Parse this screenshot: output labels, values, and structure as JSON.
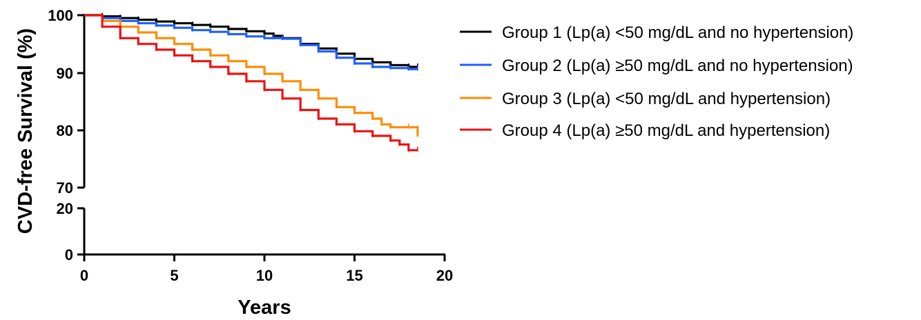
{
  "chart_data": {
    "type": "line",
    "title": "",
    "xlabel": "Years",
    "ylabel": "CVD-free Survival (%)",
    "xlim": [
      0,
      20
    ],
    "x_ticks": [
      0,
      5,
      10,
      15,
      20
    ],
    "y_broken_axis": true,
    "y_segments": [
      {
        "range": [
          0,
          20
        ],
        "ticks": [
          0,
          20
        ]
      },
      {
        "range": [
          70,
          100
        ],
        "ticks": [
          70,
          80,
          90,
          100
        ]
      }
    ],
    "y_tick_labels": [
      "0",
      "20",
      "70",
      "80",
      "90",
      "100"
    ],
    "x_tick_labels": [
      "0",
      "5",
      "10",
      "15",
      "20"
    ],
    "grid": false,
    "legend_position": "right",
    "series": [
      {
        "name": "Group 1 (Lp(a) <50 mg/dL and no hypertension)",
        "color": "#000000",
        "x": [
          0,
          1,
          2,
          3,
          4,
          5,
          6,
          7,
          8,
          9,
          10,
          10.5,
          11,
          12,
          13,
          14,
          15,
          16,
          17,
          18,
          18.5
        ],
        "y": [
          100,
          99.8,
          99.5,
          99.2,
          98.9,
          98.6,
          98.3,
          98.0,
          97.6,
          97.2,
          96.8,
          96.4,
          96.0,
          95.0,
          94.2,
          93.3,
          92.4,
          91.8,
          91.3,
          91.0,
          91.0
        ]
      },
      {
        "name": "Group 2 (Lp(a) ≥50 mg/dL and no hypertension)",
        "color": "#1f5fff",
        "x": [
          0,
          1,
          2,
          3,
          4,
          5,
          6,
          7,
          8,
          9,
          10,
          10.5,
          11,
          12,
          13,
          14,
          15,
          16,
          17,
          18,
          18.5
        ],
        "y": [
          100,
          99.5,
          99.0,
          98.6,
          98.2,
          97.8,
          97.4,
          97.1,
          96.7,
          96.3,
          96.0,
          96.0,
          95.9,
          94.8,
          93.7,
          92.6,
          91.6,
          91.0,
          90.8,
          90.6,
          90.6
        ]
      },
      {
        "name": "Group 3 (Lp(a) <50 mg/dL and hypertension)",
        "color": "#ff8c00",
        "x": [
          0,
          1,
          2,
          3,
          4,
          5,
          6,
          7,
          8,
          9,
          10,
          11,
          12,
          13,
          14,
          15,
          16,
          16.5,
          17,
          18,
          18.5
        ],
        "y": [
          100,
          99.0,
          98.0,
          97.0,
          96.0,
          95.0,
          94.0,
          93.0,
          92.0,
          91.0,
          89.8,
          88.5,
          87.0,
          85.5,
          84.0,
          83.0,
          82.0,
          81.0,
          80.5,
          80.5,
          79.0
        ]
      },
      {
        "name": "Group 4 (Lp(a) ≥50 mg/dL and hypertension)",
        "color": "#ee1111",
        "x": [
          0,
          1,
          2,
          3,
          4,
          5,
          6,
          7,
          8,
          9,
          10,
          11,
          12,
          13,
          14,
          15,
          16,
          17,
          17.5,
          18,
          18.5
        ],
        "y": [
          100,
          98.0,
          96.0,
          95.0,
          94.0,
          93.0,
          92.0,
          91.0,
          89.8,
          88.5,
          87.0,
          85.5,
          83.5,
          82.0,
          81.0,
          79.8,
          79.0,
          78.2,
          77.5,
          76.5,
          76.5
        ]
      }
    ]
  }
}
